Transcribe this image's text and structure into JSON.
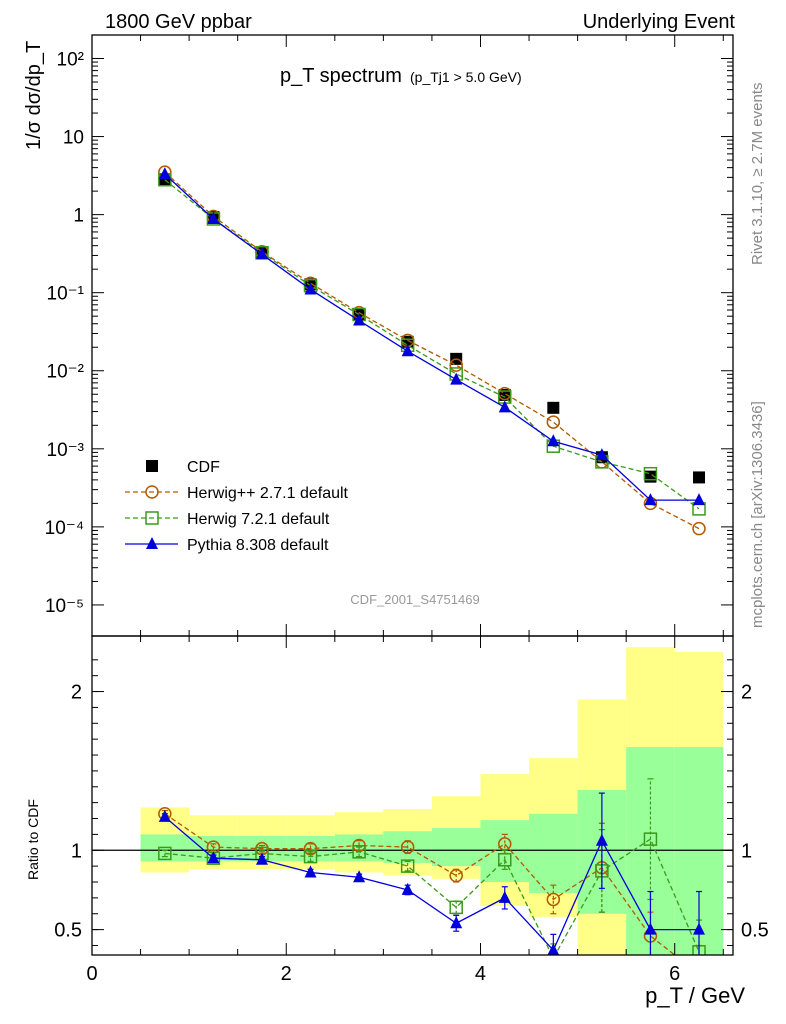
{
  "header": {
    "left": "1800 GeV ppbar",
    "right": "Underlying Event"
  },
  "side": {
    "rivet": "Rivet 3.1.10, ≥ 2.7M events",
    "mcplots": "mcplots.cern.ch [arXiv:1306.3436]"
  },
  "chart_data": [
    {
      "type": "scatter",
      "title": "p_T spectrum",
      "title_cut": "(p_Tj1 > 5.0 GeV)",
      "analysis_label": "CDF_2001_S4751469",
      "ylabel": "1/σ dσ/dp_T",
      "y_scale": "log",
      "ylim": [
        4e-06,
        200
      ],
      "y_ticks": [
        "10⁻⁵",
        "10⁻⁴",
        "10⁻³",
        "10⁻²",
        "10⁻¹",
        "1",
        "10",
        "10²"
      ],
      "x": [
        0.75,
        1.25,
        1.75,
        2.25,
        2.75,
        3.25,
        3.75,
        4.25,
        4.75,
        5.25,
        5.75,
        6.25
      ],
      "legend_position": "lower-left",
      "series": [
        {
          "name": "CDF",
          "color": "#000000",
          "marker": "square-filled",
          "values": [
            2.85,
            0.93,
            0.33,
            0.128,
            0.053,
            0.0235,
            0.0142,
            0.0049,
            0.00335,
            0.00078,
            0.00044,
            0.00043
          ]
        },
        {
          "name": "Herwig++ 2.7.1 default",
          "color": "#b35900",
          "marker": "circle-open",
          "dash": true,
          "values": [
            3.5,
            0.95,
            0.335,
            0.132,
            0.0555,
            0.0245,
            0.0118,
            0.0051,
            0.0022,
            0.00068,
            0.0002,
            9.5e-05
          ]
        },
        {
          "name": "Herwig 7.2.1 default",
          "color": "#3a9a1a",
          "marker": "square-open",
          "dash": true,
          "values": [
            2.8,
            0.88,
            0.325,
            0.123,
            0.0525,
            0.0212,
            0.0091,
            0.0046,
            0.00108,
            0.00068,
            0.00048,
            0.00017
          ]
        },
        {
          "name": "Pythia 8.308 default",
          "color": "#0000dd",
          "marker": "triangle-filled",
          "values": [
            3.3,
            0.88,
            0.31,
            0.11,
            0.044,
            0.0178,
            0.0077,
            0.0034,
            0.00125,
            0.00083,
            0.00022,
            0.00022
          ]
        }
      ]
    },
    {
      "type": "line",
      "ylabel": "Ratio to CDF",
      "xlabel": "p_T / GeV",
      "xlim": [
        0,
        6.6
      ],
      "ylim": [
        0.34,
        2.35
      ],
      "x_ticks": [
        0,
        2,
        4,
        6
      ],
      "y_ticks": [
        0.5,
        1,
        2
      ],
      "x": [
        0.75,
        1.25,
        1.75,
        2.25,
        2.75,
        3.25,
        3.75,
        4.25,
        4.75,
        5.25,
        5.75,
        6.25
      ],
      "bands": {
        "bin_edges": [
          0.5,
          1.0,
          1.5,
          2.0,
          2.5,
          3.0,
          3.5,
          4.0,
          4.5,
          5.0,
          5.5,
          6.0,
          6.5
        ],
        "yellow_low": [
          0.86,
          0.88,
          0.88,
          0.88,
          0.86,
          0.84,
          0.82,
          0.65,
          0.58,
          0.3,
          0.3,
          0.3
        ],
        "yellow_high": [
          1.27,
          1.22,
          1.22,
          1.22,
          1.24,
          1.26,
          1.34,
          1.48,
          1.58,
          1.95,
          2.28,
          2.25
        ],
        "green_low": [
          0.93,
          0.93,
          0.93,
          0.93,
          0.93,
          0.92,
          0.9,
          0.8,
          0.73,
          0.6,
          0.34,
          0.34
        ],
        "green_high": [
          1.1,
          1.09,
          1.09,
          1.09,
          1.1,
          1.12,
          1.14,
          1.19,
          1.23,
          1.38,
          1.65,
          1.65
        ]
      },
      "series": [
        {
          "name": "Herwig++ 2.7.1 default",
          "color": "#b35900",
          "marker": "circle-open",
          "dash": true,
          "values": [
            1.23,
            1.02,
            1.01,
            1.01,
            1.03,
            1.02,
            0.84,
            1.04,
            0.69,
            0.89,
            0.46,
            0.22
          ],
          "err": [
            0.02,
            0.02,
            0.02,
            0.03,
            0.03,
            0.04,
            0.04,
            0.06,
            0.09,
            0.28,
            0.15,
            0.18
          ]
        },
        {
          "name": "Herwig 7.2.1 default",
          "color": "#3a9a1a",
          "marker": "square-open",
          "dash": true,
          "values": [
            0.98,
            0.95,
            0.98,
            0.96,
            0.99,
            0.9,
            0.64,
            0.94,
            0.32,
            0.87,
            1.07,
            0.36
          ],
          "err": [
            0.02,
            0.02,
            0.02,
            0.03,
            0.03,
            0.03,
            0.04,
            0.06,
            0.09,
            0.26,
            0.38,
            0.2
          ]
        },
        {
          "name": "Pythia 8.308 default",
          "color": "#0000dd",
          "marker": "triangle-filled",
          "values": [
            1.21,
            0.95,
            0.94,
            0.86,
            0.83,
            0.75,
            0.54,
            0.7,
            0.37,
            1.06,
            0.5,
            0.5
          ],
          "err": [
            0.02,
            0.02,
            0.02,
            0.02,
            0.02,
            0.03,
            0.05,
            0.07,
            0.1,
            0.3,
            0.24,
            0.24
          ]
        }
      ]
    }
  ]
}
